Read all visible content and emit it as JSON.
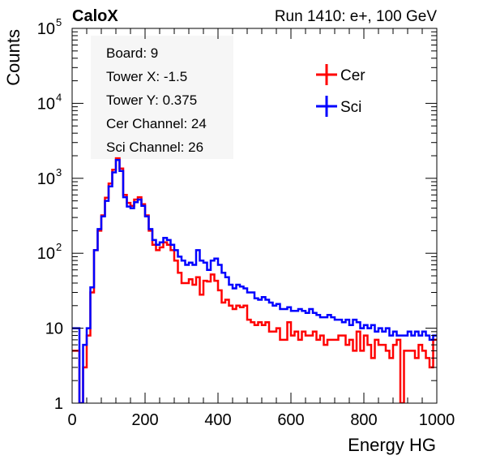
{
  "chart_data": {
    "type": "line",
    "title_left": "CaloX",
    "title_right": "Run 1410: e+, 100 GeV",
    "xlabel": "Energy HG",
    "ylabel": "Counts",
    "xlim": [
      0,
      1000
    ],
    "ylim": [
      1,
      100000
    ],
    "yscale": "log",
    "grid": false,
    "legend_position": "top-right",
    "x_ticks": [
      0,
      200,
      400,
      600,
      800,
      1000
    ],
    "y_ticks": [
      {
        "value": 1,
        "base": "1",
        "exp": ""
      },
      {
        "value": 10,
        "base": "10",
        "exp": ""
      },
      {
        "value": 100,
        "base": "10",
        "exp": "2"
      },
      {
        "value": 1000,
        "base": "10",
        "exp": "3"
      },
      {
        "value": 10000,
        "base": "10",
        "exp": "4"
      },
      {
        "value": 100000,
        "base": "10",
        "exp": "5"
      }
    ],
    "info_text": [
      "Board: 9",
      "Tower X: -1.5",
      "Tower Y: 0.375",
      "Cer Channel: 24",
      "Sci Channel: 26"
    ],
    "series": [
      {
        "name": "Cer",
        "color": "#ff0000",
        "x": [
          0,
          20,
          30,
          40,
          50,
          60,
          70,
          80,
          90,
          100,
          110,
          120,
          130,
          140,
          150,
          160,
          170,
          180,
          190,
          200,
          210,
          220,
          230,
          240,
          250,
          260,
          270,
          280,
          290,
          300,
          310,
          320,
          330,
          340,
          350,
          360,
          370,
          380,
          390,
          400,
          410,
          420,
          430,
          440,
          450,
          460,
          470,
          480,
          490,
          500,
          510,
          520,
          530,
          540,
          550,
          560,
          570,
          580,
          590,
          600,
          610,
          620,
          630,
          640,
          650,
          660,
          670,
          680,
          690,
          700,
          710,
          720,
          730,
          740,
          750,
          760,
          770,
          780,
          790,
          800,
          810,
          820,
          830,
          840,
          850,
          860,
          870,
          880,
          890,
          900,
          910,
          920,
          930,
          940,
          950,
          960,
          970,
          980,
          990
        ],
        "y": [
          5,
          1,
          3,
          8,
          30,
          110,
          200,
          320,
          550,
          850,
          1300,
          1850,
          1350,
          600,
          470,
          430,
          520,
          560,
          450,
          320,
          200,
          130,
          110,
          120,
          140,
          130,
          110,
          80,
          55,
          40,
          40,
          45,
          38,
          48,
          28,
          43,
          42,
          52,
          43,
          32,
          22,
          24,
          20,
          18,
          20,
          19,
          20,
          13,
          12,
          11,
          12,
          11,
          12,
          9,
          9,
          10,
          7,
          7,
          12,
          8,
          9,
          7,
          9,
          8,
          8,
          9,
          7,
          8,
          6,
          7,
          7,
          7,
          8,
          8,
          6,
          7,
          5,
          9,
          5,
          8,
          6,
          4,
          7,
          6,
          6,
          5,
          4,
          6,
          7,
          1,
          5,
          5,
          5,
          4,
          6,
          5,
          4,
          3,
          7
        ]
      },
      {
        "name": "Sci",
        "color": "#0000ff",
        "x": [
          0,
          20,
          30,
          40,
          50,
          60,
          70,
          80,
          90,
          100,
          110,
          120,
          130,
          140,
          150,
          160,
          170,
          180,
          190,
          200,
          210,
          220,
          230,
          240,
          250,
          260,
          270,
          280,
          290,
          300,
          310,
          320,
          330,
          340,
          350,
          360,
          370,
          380,
          390,
          400,
          410,
          420,
          430,
          440,
          450,
          460,
          470,
          480,
          490,
          500,
          510,
          520,
          530,
          540,
          550,
          560,
          570,
          580,
          590,
          600,
          610,
          620,
          630,
          640,
          650,
          660,
          670,
          680,
          690,
          700,
          710,
          720,
          730,
          740,
          750,
          760,
          770,
          780,
          790,
          800,
          810,
          820,
          830,
          840,
          850,
          860,
          870,
          880,
          890,
          900,
          910,
          920,
          930,
          940,
          950,
          960,
          970,
          980,
          990
        ],
        "y": [
          10,
          1,
          6,
          10,
          35,
          110,
          210,
          310,
          500,
          780,
          1200,
          1750,
          1250,
          560,
          420,
          400,
          480,
          520,
          430,
          310,
          210,
          150,
          130,
          140,
          160,
          150,
          130,
          110,
          90,
          80,
          70,
          75,
          70,
          110,
          80,
          75,
          60,
          80,
          85,
          70,
          55,
          48,
          38,
          34,
          38,
          36,
          34,
          30,
          30,
          25,
          24,
          26,
          24,
          22,
          20,
          21,
          18,
          18,
          19,
          17,
          17,
          18,
          17,
          16,
          18,
          16,
          15,
          14,
          14,
          15,
          14,
          13,
          13,
          12,
          13,
          11,
          13,
          12,
          10,
          11,
          10,
          11,
          9,
          10,
          9,
          10,
          8,
          9,
          8,
          8,
          8,
          9,
          8,
          9,
          8,
          9,
          8,
          7,
          8
        ]
      }
    ]
  }
}
